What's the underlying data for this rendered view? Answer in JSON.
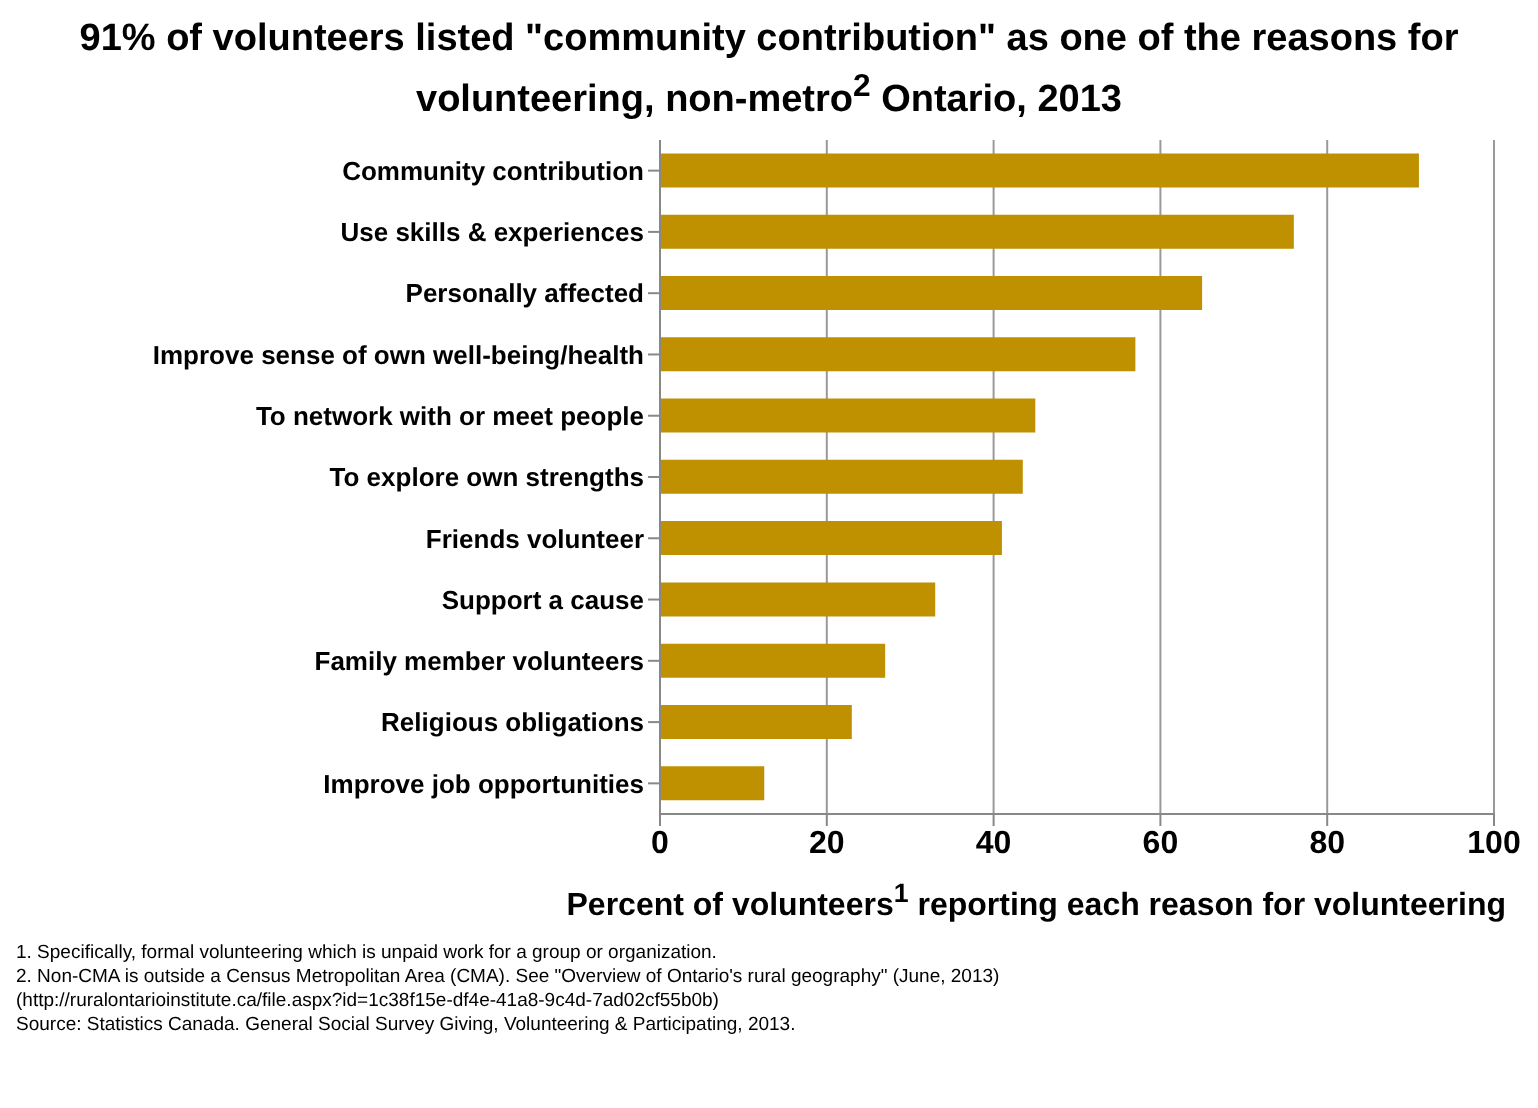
{
  "chart_data": {
    "type": "bar",
    "orientation": "horizontal",
    "title": "91% of volunteers listed \"community contribution\" as one of the reasons for volunteering, non-metro$^{2}$ Ontario, 2013",
    "xlabel": "Percent of volunteers$^{1}$ reporting each reason for volunteering",
    "categories": [
      "Community contribution",
      "Use skills & experiences",
      "Personally affected",
      "Improve sense of own well-being/health",
      "To network with or meet people",
      "To explore own strengths",
      "Friends volunteer",
      "Support a cause",
      "Family member volunteers",
      "Religious obligations",
      "Improve job opportunities"
    ],
    "values": [
      91,
      76,
      65,
      57,
      45,
      43.5,
      41,
      33,
      27,
      23,
      12.5
    ],
    "color": "#bf9000",
    "xlim": [
      0,
      100
    ],
    "xticks": [
      0,
      20,
      40,
      60,
      80,
      100
    ],
    "grid": "x",
    "annotations": [
      "1. Specifically, formal volunteering which is unpaid work for a group or organization.",
      "2. Non-CMA is outside a Census Metropolitan Area (CMA). See \"Overview of Ontario's rural geography\" (June, 2013)",
      "(http://ruralontarioinstitute.ca/file.aspx?id=1c38f15e-df4e-41a8-9c4d-7ad02cf55b0b)",
      "Source: Statistics Canada. General Social Survey  Giving, Volunteering & Participating, 2013."
    ]
  }
}
